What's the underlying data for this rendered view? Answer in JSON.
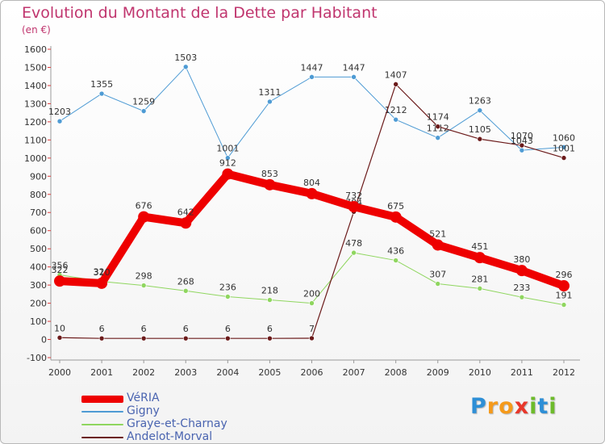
{
  "header": {
    "title": "Evolution du Montant de la Dette par Habitant",
    "subtitle": "(en €)"
  },
  "brand": {
    "letters": [
      {
        "ch": "P",
        "color": "#2e8fd6"
      },
      {
        "ch": "r",
        "color": "#f59a1b"
      },
      {
        "ch": "o",
        "color": "#f59a1b"
      },
      {
        "ch": "x",
        "color": "#e8372a"
      },
      {
        "ch": "i",
        "color": "#6dbb2b"
      },
      {
        "ch": "t",
        "color": "#2e8fd6"
      },
      {
        "ch": "i",
        "color": "#6dbb2b"
      }
    ]
  },
  "chart_data": {
    "type": "line",
    "title": "Evolution du Montant de la Dette par Habitant",
    "subtitle": "(en €)",
    "x": [
      "2000",
      "2001",
      "2002",
      "2003",
      "2004",
      "2005",
      "2006",
      "2007",
      "2008",
      "2009",
      "2010",
      "2011",
      "2012"
    ],
    "ylim": [
      -100,
      1600
    ],
    "yticks": [
      -100,
      0,
      100,
      200,
      300,
      400,
      500,
      600,
      700,
      800,
      900,
      1000,
      1100,
      1200,
      1300,
      1400,
      1500,
      1600
    ],
    "grid": false,
    "legend_position": "bottom-left",
    "series": [
      {
        "name": "VéRIA",
        "color": "#ee0000",
        "values": [
          322,
          310,
          676,
          642,
          912,
          853,
          804,
          732,
          675,
          521,
          451,
          380,
          296
        ]
      },
      {
        "name": "Gigny",
        "color": "#4e9bd4",
        "values": [
          1203,
          1355,
          1259,
          1503,
          1001,
          1311,
          1447,
          1447,
          1212,
          1112,
          1263,
          1043,
          1060
        ]
      },
      {
        "name": "Graye-et-Charnay",
        "color": "#8fd65f",
        "values": [
          356,
          320,
          298,
          268,
          236,
          218,
          200,
          478,
          436,
          307,
          281,
          233,
          191
        ]
      },
      {
        "name": "Andelot-Morval",
        "color": "#6b1a1a",
        "values": [
          10,
          6,
          6,
          6,
          6,
          6,
          7,
          704,
          1407,
          1174,
          1105,
          1070,
          1001
        ]
      }
    ]
  }
}
